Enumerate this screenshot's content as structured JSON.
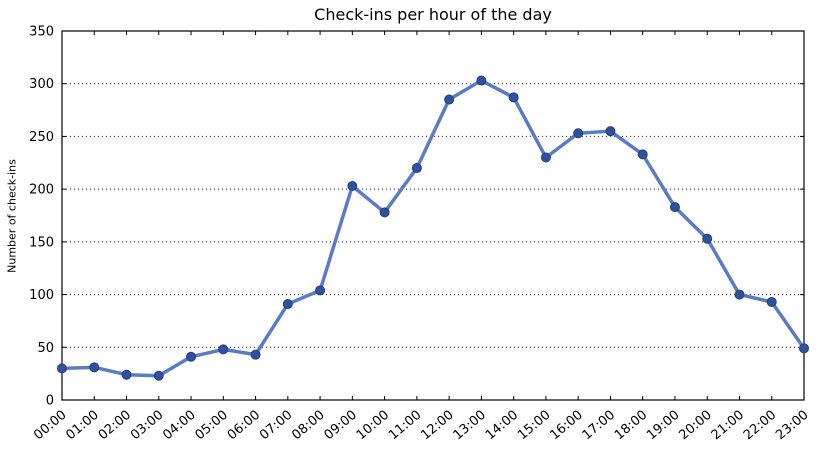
{
  "chart_data": {
    "type": "line",
    "title": "Check-ins per hour of the day",
    "xlabel": "",
    "ylabel": "Number of check-ins",
    "categories": [
      "00:00",
      "01:00",
      "02:00",
      "03:00",
      "04:00",
      "05:00",
      "06:00",
      "07:00",
      "08:00",
      "09:00",
      "10:00",
      "11:00",
      "12:00",
      "13:00",
      "14:00",
      "15:00",
      "16:00",
      "17:00",
      "18:00",
      "19:00",
      "20:00",
      "21:00",
      "22:00",
      "23:00"
    ],
    "values": [
      30,
      31,
      24,
      23,
      41,
      48,
      43,
      91,
      104,
      203,
      178,
      220,
      285,
      303,
      287,
      230,
      253,
      255,
      233,
      183,
      153,
      100,
      93,
      49
    ],
    "ylim": [
      0,
      350
    ],
    "yticks": [
      0,
      50,
      100,
      150,
      200,
      250,
      300,
      350
    ],
    "grid": "horizontal-dotted",
    "legend": "none",
    "x_tick_rotation_deg": 40,
    "line_color": "#5b7cc4",
    "marker_color": "#30519c",
    "marker_edge_color": "#24407e",
    "grid_color": "#222222",
    "axis_color": "#000000",
    "background_color": "#ffffff"
  }
}
